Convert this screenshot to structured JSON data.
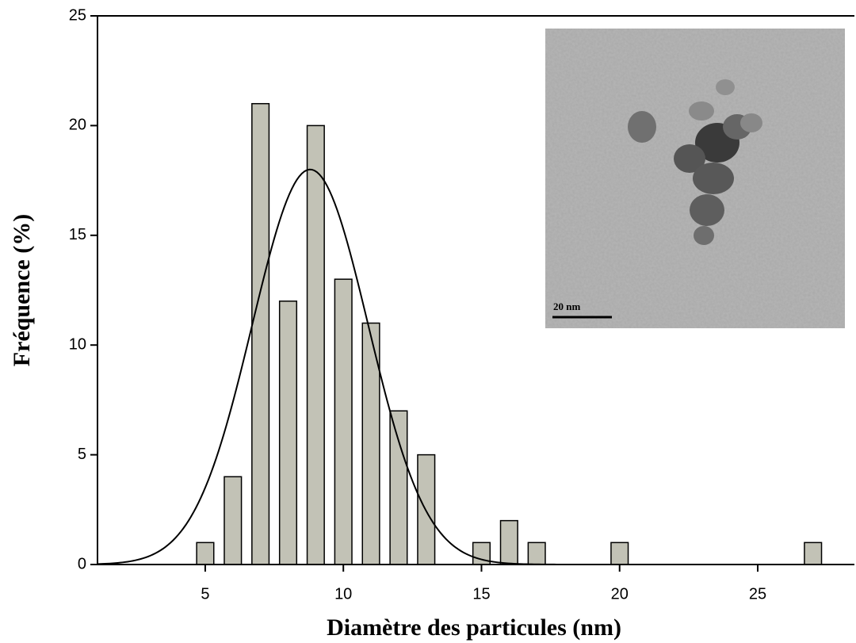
{
  "chart_data": {
    "type": "bar",
    "x": [
      5,
      6,
      7,
      8,
      9,
      10,
      11,
      12,
      13,
      15,
      16,
      17,
      20,
      27
    ],
    "values": [
      1,
      4,
      21,
      12,
      20,
      13,
      11,
      7,
      5,
      1,
      2,
      1,
      1,
      1
    ],
    "color": "#c2c2b6",
    "bar_width": 0.62,
    "fit": {
      "type": "gaussian",
      "amplitude": 18,
      "center": 8.8,
      "sigma": 2.1,
      "color": "#000000"
    },
    "xlabel": "Diamètre des particules (nm)",
    "ylabel": "Fréquence (%)",
    "xlim": [
      1.1,
      28.5
    ],
    "xticks": [
      5,
      10,
      15,
      20,
      25
    ],
    "ylim": [
      0,
      25
    ],
    "yticks": [
      0,
      5,
      10,
      15,
      20,
      25
    ],
    "grid": false,
    "inset_scale_label": "20 nm"
  }
}
